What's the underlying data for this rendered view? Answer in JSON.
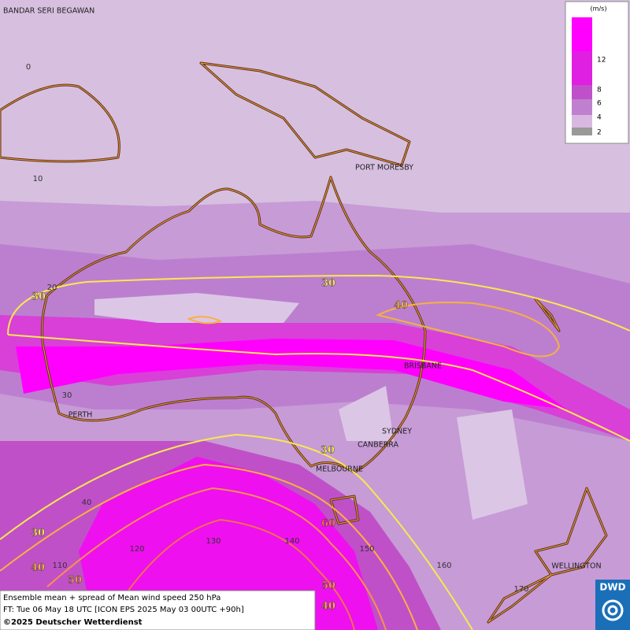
{
  "cities": [
    "BANDAR SERI BEGAWAN",
    "PORT MORESBY",
    "BRISBANE",
    "PERTH",
    "SYDNEY",
    "CANBERRA",
    "MELBOURNE",
    "WELLINGTON"
  ],
  "latitude_labels": [
    "0",
    "10",
    "20",
    "30",
    "40"
  ],
  "longitude_labels": [
    "110",
    "120",
    "130",
    "140",
    "150",
    "160",
    "170"
  ],
  "contour_labels": [
    "30",
    "30",
    "40",
    "30",
    "30",
    "60",
    "40",
    "50",
    "50",
    "40"
  ],
  "legend": {
    "unit": "(m/s)",
    "ticks": [
      "12",
      "8",
      "6",
      "4",
      "2"
    ]
  },
  "footer": {
    "line1": "Ensemble mean + spread of Mean wind speed 250 hPa",
    "line2": "FT: Tue 06 May 18 UTC [ICON EPS 2025 May 03 00UTC +90h]",
    "copyright": "©2025 Deutscher Wetterdienst"
  },
  "logo": "DWD"
}
